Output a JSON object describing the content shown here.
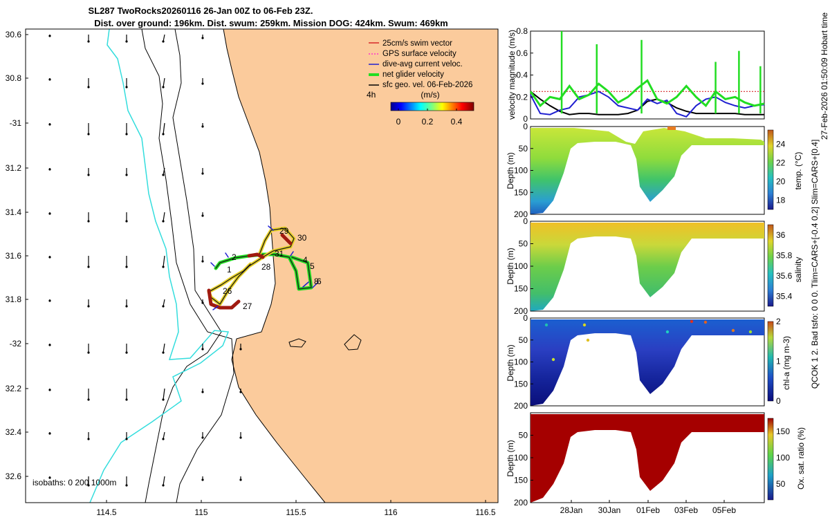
{
  "header": {
    "title_line1": "SL287 TwoRocks20260116 26-Jan 00Z to 06-Feb 23Z.",
    "title_line2": "Dist. over ground: 196km. Dist. swum: 259km. Mission DOG: 424km. Swum: 469km"
  },
  "side_text": "27-Feb-2026 01:50:09 Hobart time",
  "map": {
    "lat_ticks": [
      "30.6",
      "30.8",
      "-31",
      "31.2",
      "31.4",
      "31.6",
      "31.8",
      "-32",
      "32.2",
      "32.4",
      "32.6"
    ],
    "lon_ticks": [
      "114.5",
      "115",
      "115.5",
      "116",
      "116.5"
    ],
    "isobaths_label": "isobaths: 0   200  1000m",
    "legend": [
      {
        "label": "25cm/s swim vector",
        "color": "#d62728"
      },
      {
        "label": "GPS surface velocity",
        "color": "#ff33cc"
      },
      {
        "label": "dive-avg current veloc.",
        "color": "#1f1fd0"
      },
      {
        "label": "net glider velocity",
        "color": "#22dd22"
      },
      {
        "label": "sfc geo. vel. 06-Feb-2026",
        "color": "#000000"
      }
    ],
    "interval_label": "4h",
    "colorbar": {
      "units": "(m/s)",
      "ticks": [
        "0",
        "0.2",
        "0.4"
      ]
    },
    "track_labels": [
      "1",
      "2",
      "4",
      "5",
      "6",
      "8",
      "26",
      "27",
      "28",
      "29",
      "30",
      "31"
    ],
    "colors": {
      "land": "#fbcb9c",
      "sea": "#ffffff",
      "coast": "#000000",
      "isobath_200": "#000000",
      "isobath_1000": "#33dddd"
    }
  },
  "chart_data": [
    {
      "type": "line",
      "title": "",
      "ylabel": "velocity magnitude (m/s)",
      "ylim": [
        0,
        0.8
      ],
      "yticks": [
        "0",
        "0.2",
        "0.4",
        "0.6",
        "0.8"
      ],
      "x": [
        0,
        0.5,
        1,
        1.5,
        2,
        2.5,
        3,
        3.5,
        4,
        4.5,
        5,
        5.5,
        6,
        6.5,
        7,
        7.5,
        8,
        8.5,
        9,
        9.5,
        10,
        10.5,
        11,
        11.5,
        12
      ],
      "series": [
        {
          "name": "net glider velocity",
          "color": "#22dd22",
          "values": [
            0.25,
            0.12,
            0.2,
            0.18,
            0.3,
            0.18,
            0.22,
            0.32,
            0.25,
            0.15,
            0.2,
            0.28,
            0.35,
            0.18,
            0.14,
            0.2,
            0.3,
            0.2,
            0.12,
            0.25,
            0.18,
            0.2,
            0.15,
            0.12,
            0.14
          ]
        },
        {
          "name": "dive-avg current veloc.",
          "color": "#1f1fd0",
          "values": [
            0.22,
            0.05,
            0.04,
            0.08,
            0.1,
            0.2,
            0.22,
            0.25,
            0.2,
            0.12,
            0.1,
            0.08,
            0.18,
            0.14,
            0.17,
            0.05,
            0.02,
            0.12,
            0.18,
            0.2,
            0.15,
            0.12,
            0.1,
            0.12,
            0.13
          ]
        },
        {
          "name": "sfc geo. vel.",
          "color": "#000000",
          "values": [
            0.25,
            0.18,
            0.12,
            0.07,
            0.04,
            0.05,
            0.05,
            0.04,
            0.04,
            0.04,
            0.05,
            0.08,
            0.16,
            0.18,
            0.15,
            0.1,
            0.07,
            0.05,
            0.05,
            0.05,
            0.05,
            0.05,
            0.04,
            0.04,
            0.04
          ]
        },
        {
          "name": "25cm/s swim vector",
          "color": "#d62728",
          "values": [
            0.25,
            0.25,
            0.25,
            0.25,
            0.25,
            0.25,
            0.25,
            0.25,
            0.25,
            0.25,
            0.25,
            0.25,
            0.25,
            0.25,
            0.25,
            0.25,
            0.25,
            0.25,
            0.25,
            0.25,
            0.25,
            0.25,
            0.25,
            0.25,
            0.25
          ]
        }
      ]
    },
    {
      "type": "heatmap",
      "ylabel": "Depth (m)",
      "cbar_label": "temp. (°C)",
      "ylim": [
        200,
        0
      ],
      "yticks": [
        "0",
        "50",
        "100",
        "150",
        "200"
      ],
      "cbar_ticks": [
        "18",
        "20",
        "22",
        "24"
      ],
      "clim": [
        17,
        25.5
      ]
    },
    {
      "type": "heatmap",
      "ylabel": "Depth (m)",
      "cbar_label": "salinity",
      "ylim": [
        200,
        0
      ],
      "yticks": [
        "0",
        "50",
        "100",
        "150",
        "200"
      ],
      "cbar_ticks": [
        "35.4",
        "35.6",
        "35.8",
        "36"
      ],
      "clim": [
        35.3,
        36.1
      ]
    },
    {
      "type": "heatmap",
      "ylabel": "Depth (m)",
      "cbar_label": "chl-a (mg m-3)",
      "ylim": [
        200,
        0
      ],
      "yticks": [
        "0",
        "50",
        "100",
        "150",
        "200"
      ],
      "cbar_ticks": [
        "0",
        "1",
        "2"
      ],
      "clim": [
        0,
        2
      ]
    },
    {
      "type": "heatmap",
      "ylabel": "Depth (m)",
      "cbar_label": "Ox. sat. ratio (%)",
      "ylim": [
        200,
        0
      ],
      "yticks": [
        "50",
        "100",
        "150",
        "200"
      ],
      "cbar_ticks": [
        "50",
        "100",
        "150"
      ],
      "clim": [
        20,
        175
      ],
      "xticks": [
        "28Jan",
        "30Jan",
        "01Feb",
        "03Feb",
        "05Feb"
      ]
    }
  ],
  "qc_label": "QCOK 1  2. Bad tsfo: 0  0  0. Tlim=CARS+[-0.4 0.2] Slim=CARS+[0.4]"
}
